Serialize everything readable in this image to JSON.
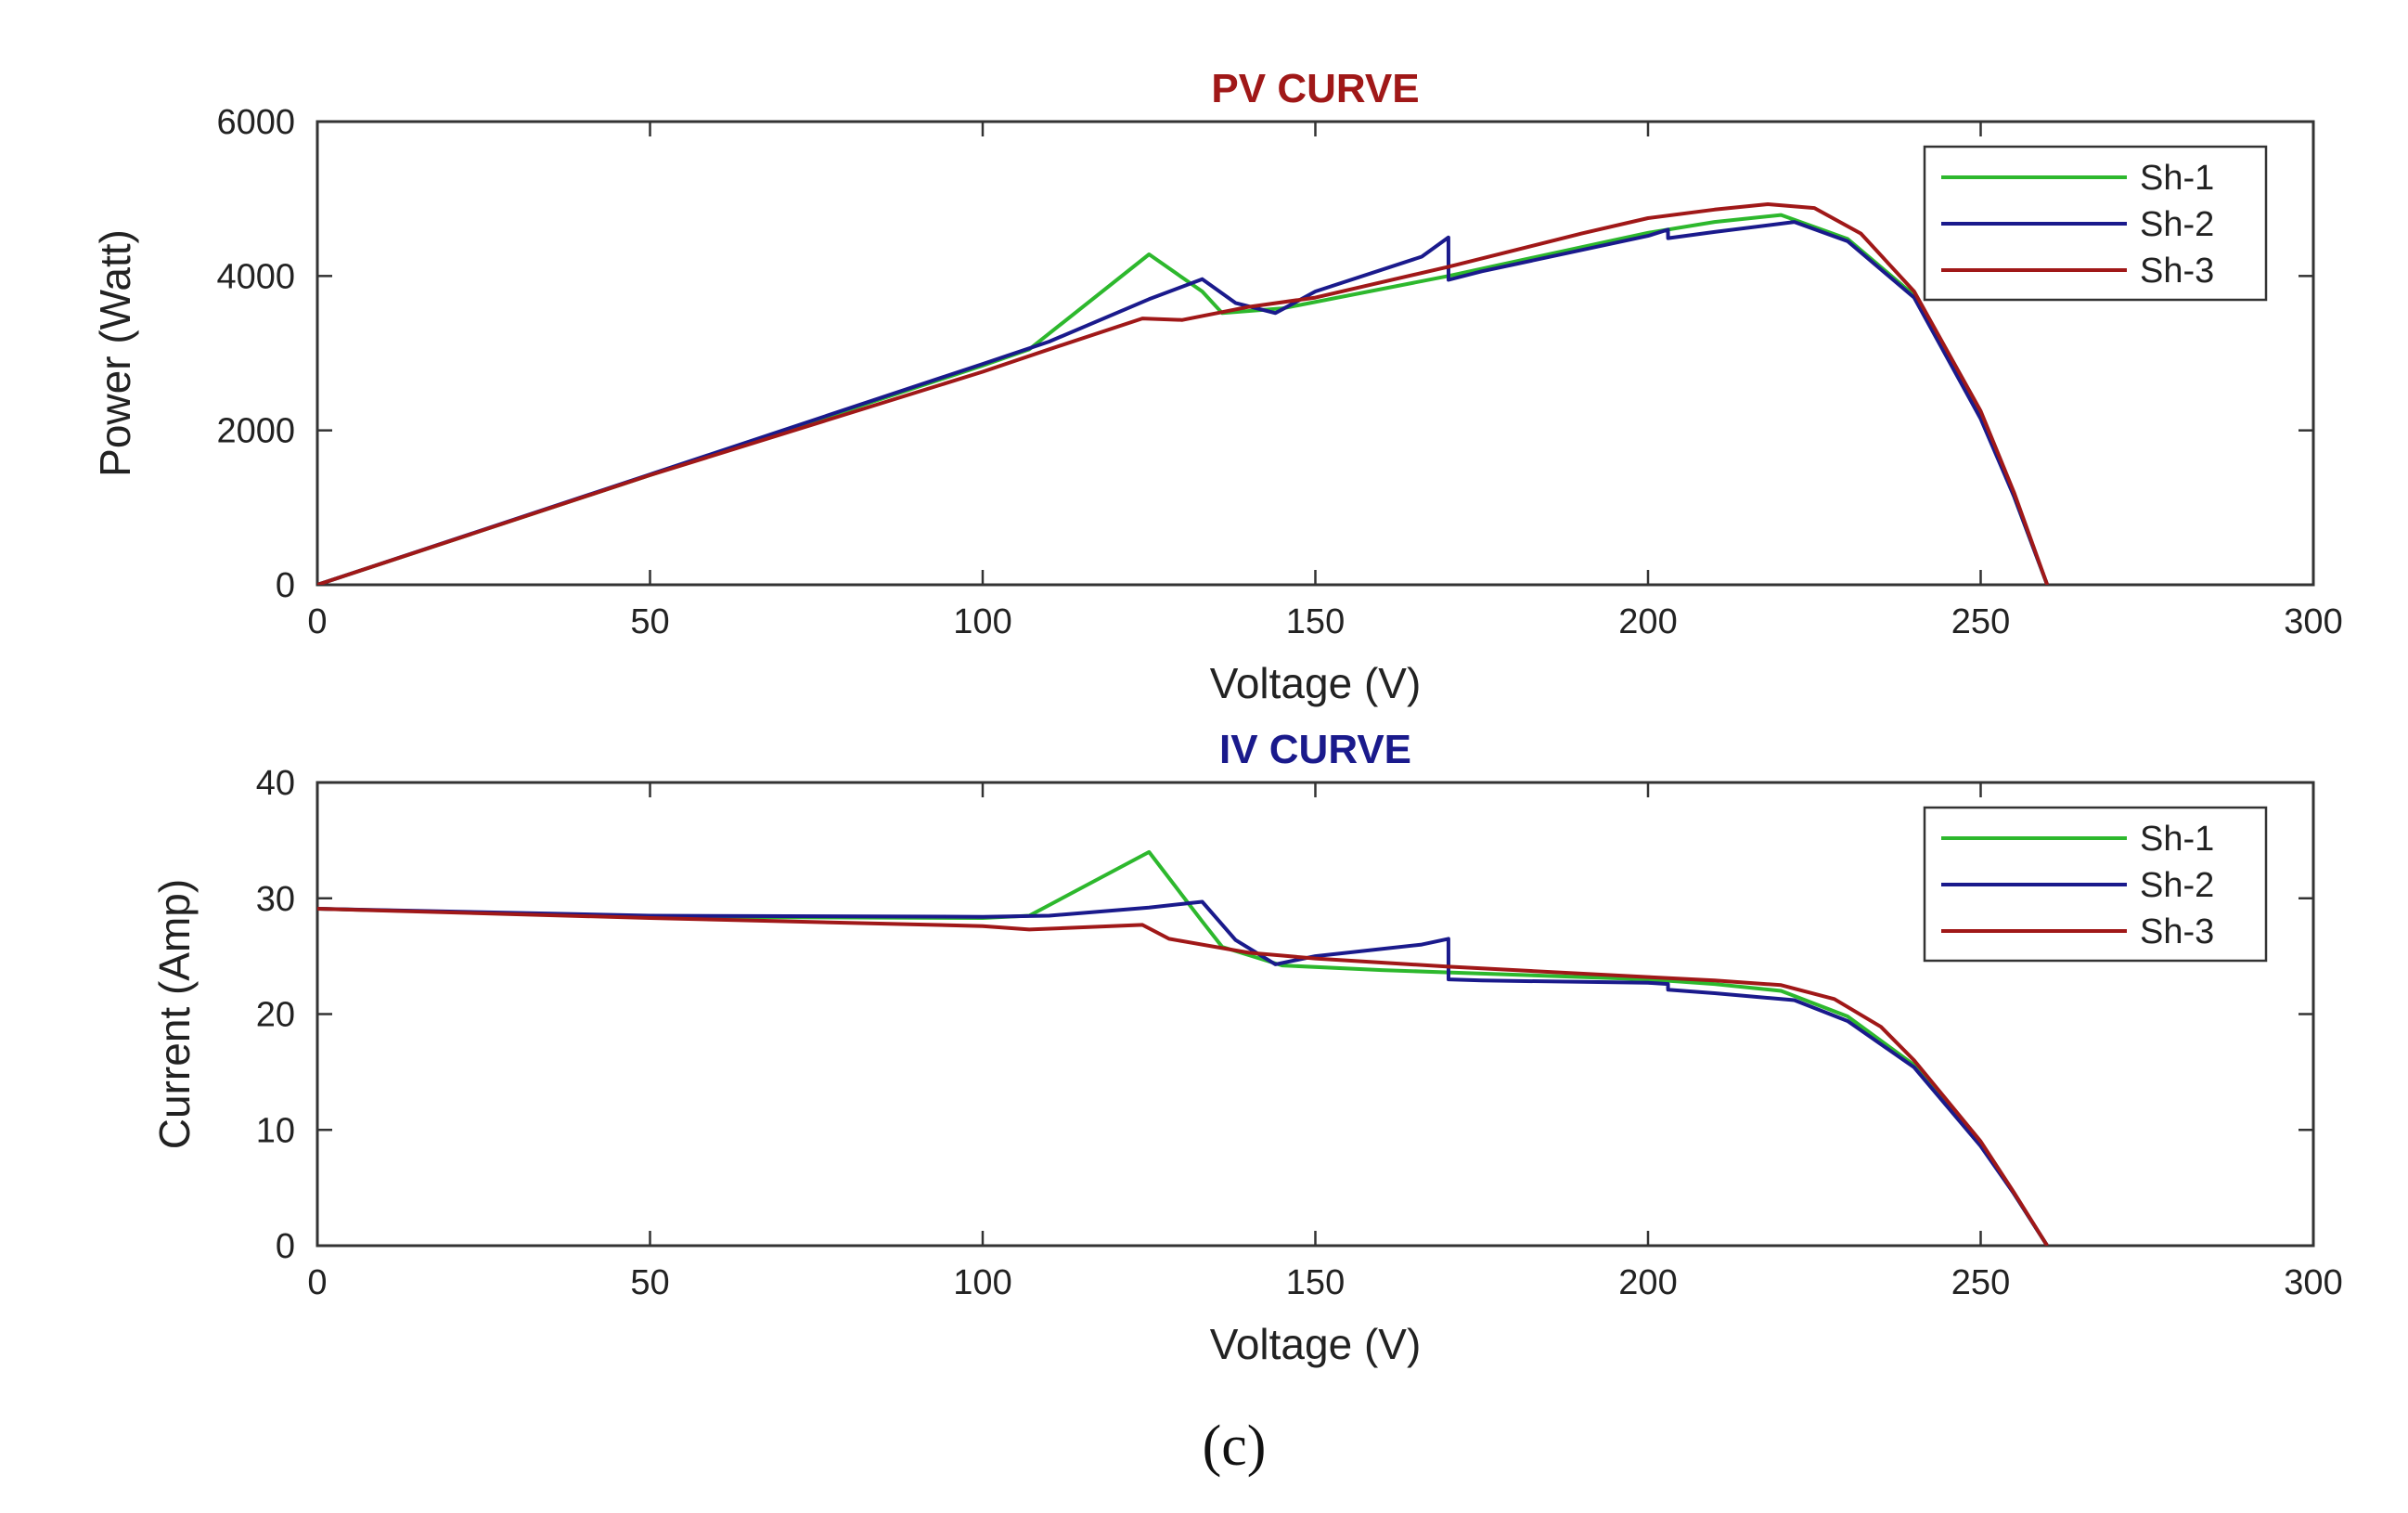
{
  "chart_data": [
    {
      "type": "line",
      "title": "PV CURVE",
      "title_color": "#a01818",
      "xlabel": "Voltage (V)",
      "ylabel": "Power (Watt)",
      "xlim": [
        0,
        300
      ],
      "ylim": [
        0,
        6000
      ],
      "xticks": [
        0,
        50,
        100,
        150,
        200,
        250,
        300
      ],
      "yticks": [
        0,
        2000,
        4000,
        6000
      ],
      "legend": "top-right",
      "series": [
        {
          "name": "Sh-1",
          "color": "#2db82d",
          "x": [
            0,
            50,
            100,
            107,
            125,
            133,
            136,
            145,
            170,
            200,
            210,
            220,
            230,
            240,
            250,
            255,
            260
          ],
          "y": [
            0,
            1420,
            2840,
            3050,
            4280,
            3800,
            3520,
            3580,
            4000,
            4560,
            4700,
            4790,
            4480,
            3750,
            2200,
            1150,
            0
          ]
        },
        {
          "name": "Sh-2",
          "color": "#1a1a8c",
          "x": [
            0,
            50,
            100,
            110,
            125,
            133,
            138,
            144,
            150,
            166,
            170,
            170.01,
            175,
            200,
            203,
            203.01,
            210,
            222,
            230,
            240,
            250,
            255,
            260
          ],
          "y": [
            0,
            1430,
            2860,
            3150,
            3700,
            3960,
            3650,
            3520,
            3800,
            4250,
            4500,
            3950,
            4060,
            4520,
            4600,
            4490,
            4570,
            4700,
            4450,
            3720,
            2150,
            1150,
            0
          ]
        },
        {
          "name": "Sh-3",
          "color": "#a01818",
          "x": [
            0,
            50,
            100,
            110,
            124,
            130,
            140,
            150,
            170,
            190,
            200,
            210,
            218,
            225,
            232,
            240,
            250,
            255,
            260
          ],
          "y": [
            0,
            1420,
            2760,
            3050,
            3450,
            3430,
            3600,
            3720,
            4120,
            4550,
            4750,
            4860,
            4930,
            4880,
            4550,
            3800,
            2250,
            1200,
            0
          ]
        }
      ]
    },
    {
      "type": "line",
      "title": "IV CURVE",
      "title_color": "#1a1a8c",
      "xlabel": "Voltage (V)",
      "ylabel": "Current (Amp)",
      "xlim": [
        0,
        300
      ],
      "ylim": [
        0,
        40
      ],
      "xticks": [
        0,
        50,
        100,
        150,
        200,
        250,
        300
      ],
      "yticks": [
        0,
        10,
        20,
        30,
        40
      ],
      "legend": "top-right",
      "series": [
        {
          "name": "Sh-1",
          "color": "#2db82d",
          "x": [
            0,
            50,
            100,
            107,
            125,
            133,
            136,
            145,
            160,
            170,
            200,
            210,
            220,
            230,
            240,
            250,
            255,
            260
          ],
          "y": [
            29.1,
            28.4,
            28.3,
            28.5,
            34.0,
            28.0,
            25.8,
            24.2,
            23.8,
            23.6,
            23.0,
            22.6,
            22.0,
            19.8,
            15.6,
            8.8,
            4.5,
            0
          ]
        },
        {
          "name": "Sh-2",
          "color": "#1a1a8c",
          "x": [
            0,
            50,
            100,
            110,
            125,
            133,
            138,
            144,
            150,
            166,
            170,
            170.01,
            175,
            200,
            203,
            203.01,
            210,
            222,
            230,
            240,
            250,
            255,
            260
          ],
          "y": [
            29.1,
            28.5,
            28.4,
            28.5,
            29.2,
            29.7,
            26.4,
            24.3,
            25.0,
            26.0,
            26.5,
            23.0,
            22.9,
            22.7,
            22.6,
            22.1,
            21.8,
            21.2,
            19.4,
            15.4,
            8.6,
            4.5,
            0
          ]
        },
        {
          "name": "Sh-3",
          "color": "#a01818",
          "x": [
            0,
            50,
            100,
            107,
            124,
            128,
            140,
            150,
            170,
            200,
            210,
            220,
            228,
            235,
            240,
            250,
            255,
            260
          ],
          "y": [
            29.1,
            28.3,
            27.6,
            27.3,
            27.7,
            26.5,
            25.3,
            24.8,
            24.1,
            23.2,
            22.9,
            22.5,
            21.3,
            18.9,
            16.0,
            9.0,
            4.6,
            0
          ]
        }
      ]
    }
  ],
  "caption": "(c)"
}
